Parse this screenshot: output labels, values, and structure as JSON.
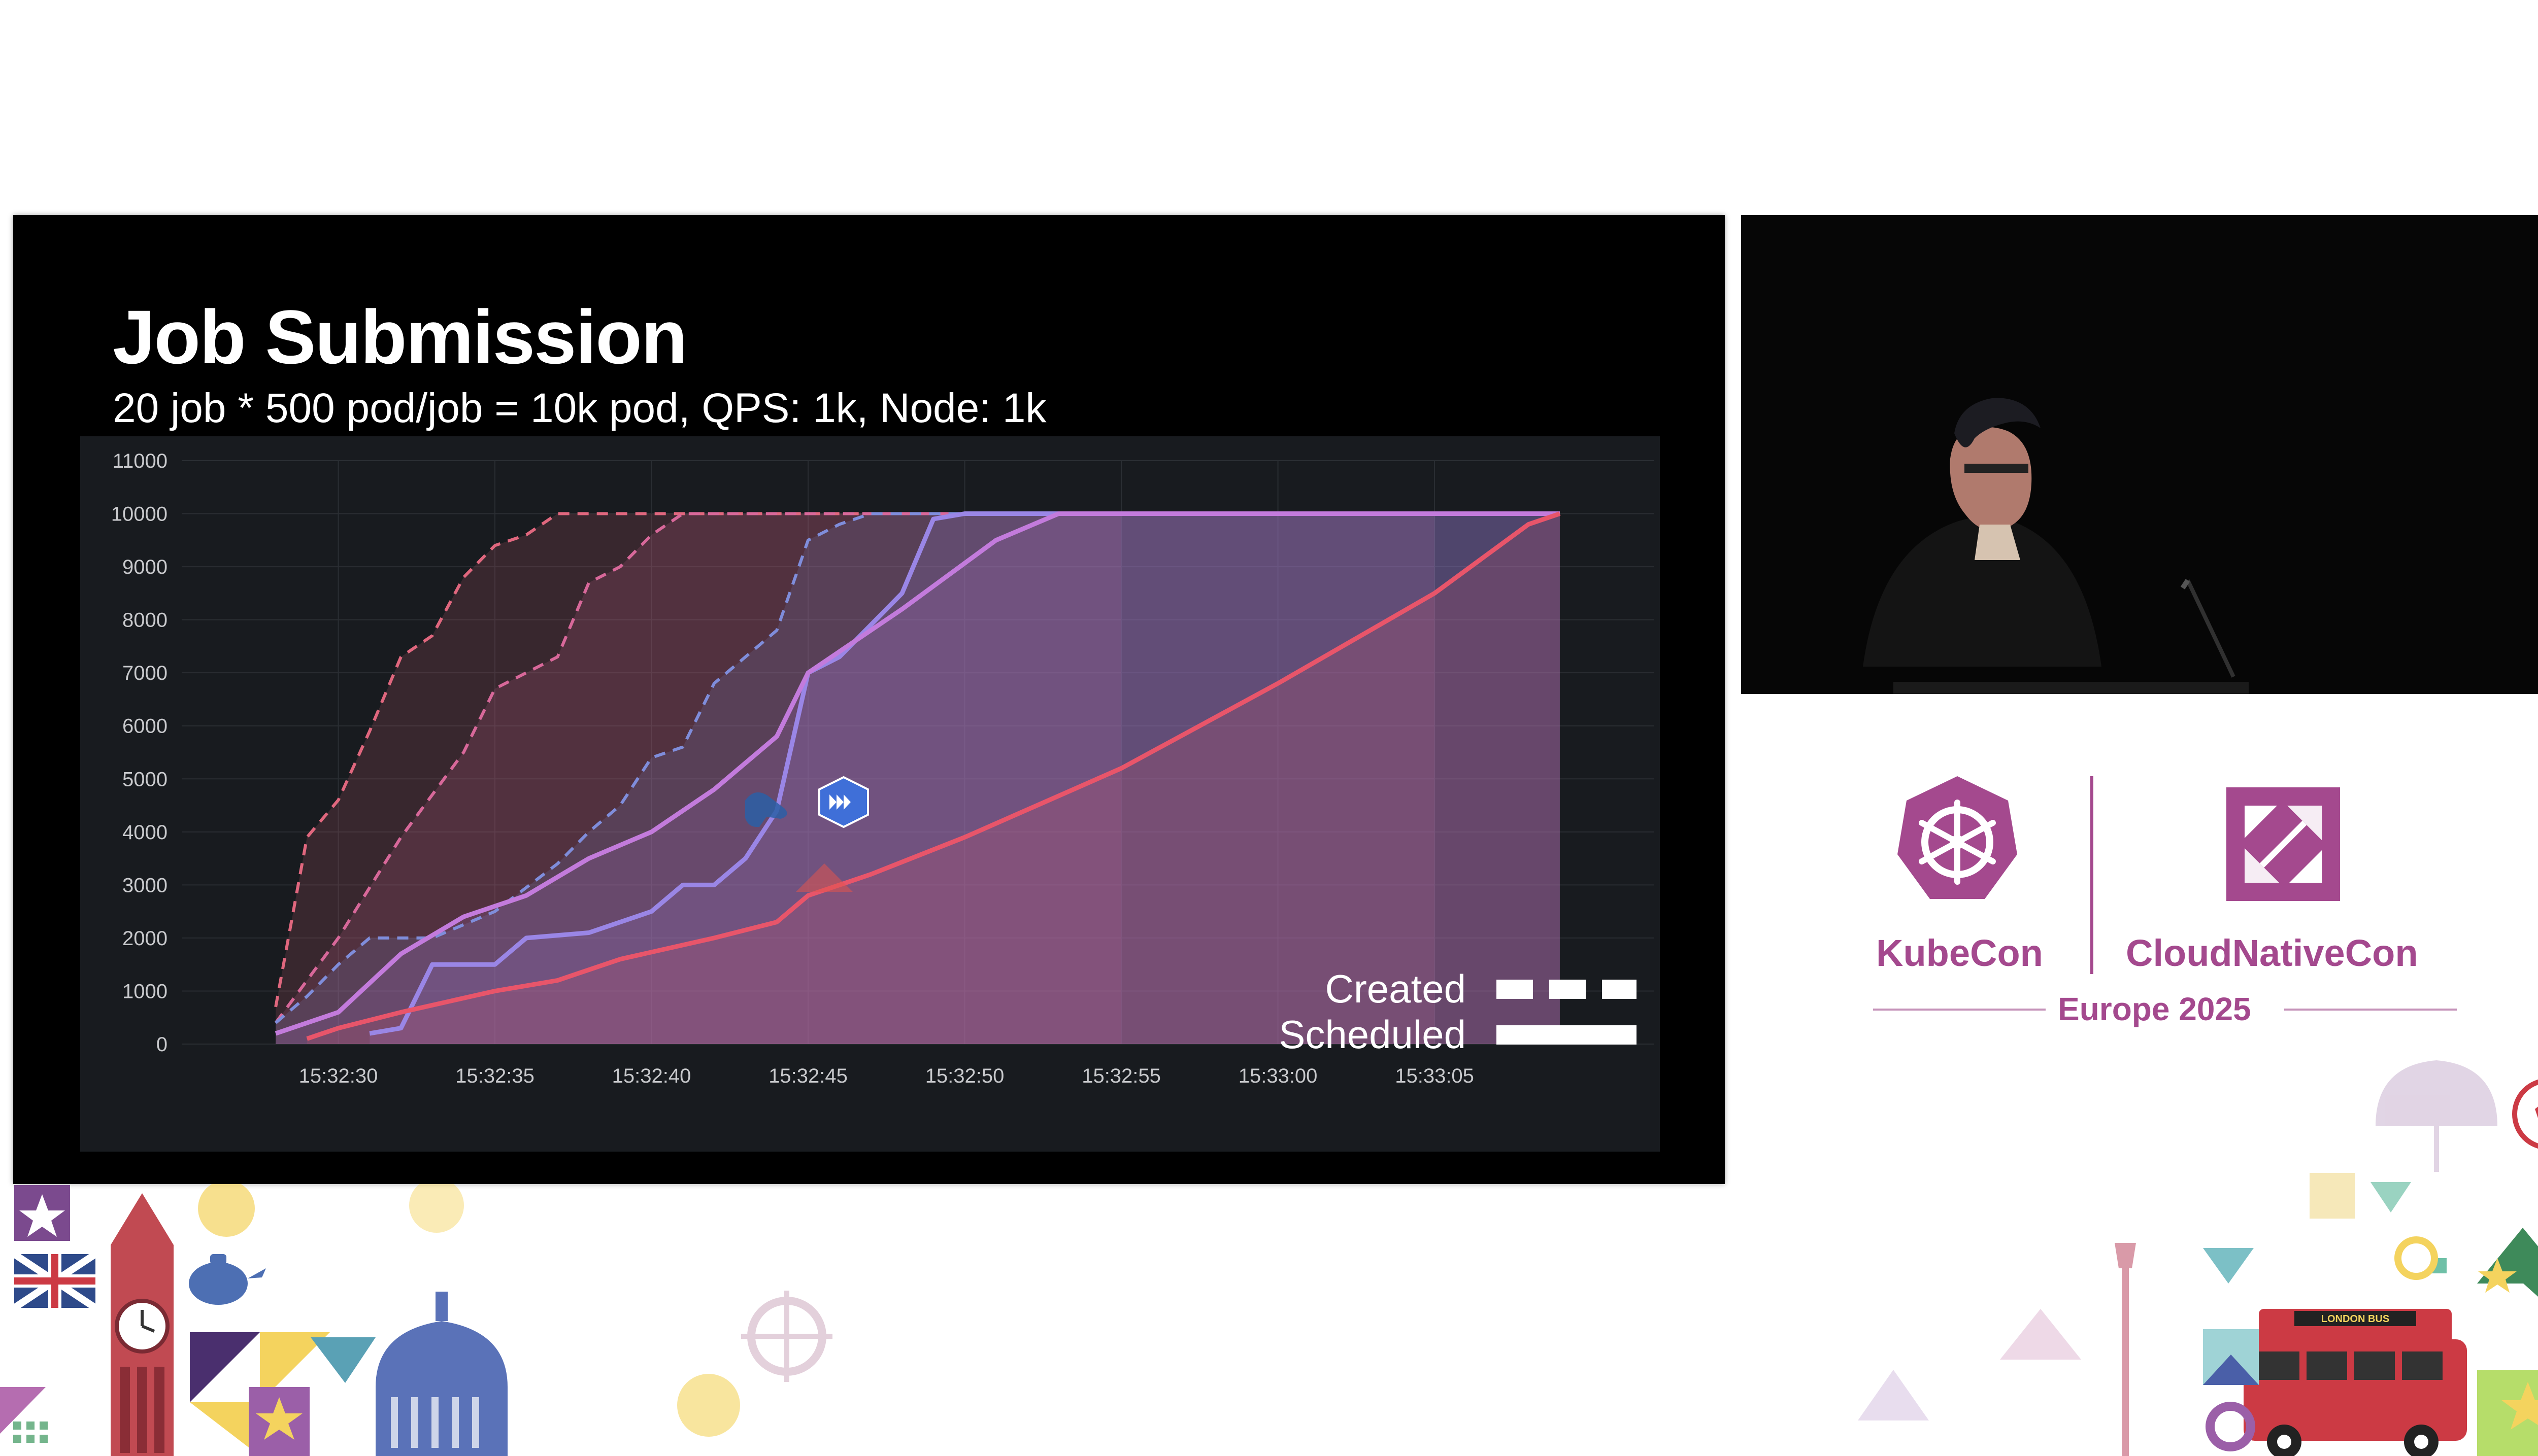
{
  "slide": {
    "title": "Job Submission",
    "subtitle": "20 job * 500 pod/job = 10k pod, QPS: 1k, Node: 1k"
  },
  "chart_data": {
    "type": "area",
    "x_unit": "time",
    "categories": [
      "15:32:30",
      "15:32:35",
      "15:32:40",
      "15:32:45",
      "15:32:50",
      "15:32:55",
      "15:33:00",
      "15:33:05"
    ],
    "y_ticks": [
      0,
      1000,
      2000,
      3000,
      4000,
      5000,
      6000,
      7000,
      8000,
      9000,
      10000,
      11000
    ],
    "ylim": [
      0,
      11000
    ],
    "grid": true,
    "legend_position": "bottom-right",
    "legend": [
      {
        "label": "Created",
        "style": "dashed"
      },
      {
        "label": "Scheduled",
        "style": "solid"
      }
    ],
    "series": [
      {
        "style": "dashed",
        "color": "#e0677e",
        "x": [
          "15:32:28",
          "15:32:29",
          "15:32:30",
          "15:32:31",
          "15:32:32",
          "15:32:33",
          "15:32:34",
          "15:32:35",
          "15:32:36",
          "15:32:37",
          "15:32:38",
          "15:32:55"
        ],
        "y": [
          700,
          3900,
          4600,
          5900,
          7300,
          7700,
          8800,
          9400,
          9600,
          10000,
          10000,
          10000
        ]
      },
      {
        "style": "dashed",
        "color": "#d8689a",
        "x": [
          "15:32:28",
          "15:32:30",
          "15:32:32",
          "15:32:34",
          "15:32:35",
          "15:32:36",
          "15:32:37",
          "15:32:38",
          "15:32:39",
          "15:32:40",
          "15:32:41",
          "15:33:05"
        ],
        "y": [
          400,
          2000,
          3900,
          5500,
          6700,
          7000,
          7300,
          8700,
          9000,
          9600,
          10000,
          10000
        ]
      },
      {
        "style": "dashed",
        "color": "#7f8ddb",
        "x": [
          "15:32:28",
          "15:32:29",
          "15:32:30",
          "15:32:31",
          "15:32:33",
          "15:32:35",
          "15:32:37",
          "15:32:38",
          "15:32:39",
          "15:32:40",
          "15:32:41",
          "15:32:42",
          "15:32:43",
          "15:32:44",
          "15:32:45",
          "15:32:46",
          "15:32:47",
          "15:33:09"
        ],
        "y": [
          400,
          900,
          1500,
          2000,
          2000,
          2500,
          3400,
          4000,
          4500,
          5400,
          5600,
          6800,
          7300,
          7800,
          9500,
          9800,
          10000,
          10000
        ]
      },
      {
        "style": "solid",
        "color": "#9a86e6",
        "x": [
          "15:32:31",
          "15:32:32",
          "15:32:33",
          "15:32:35",
          "15:32:36",
          "15:32:38",
          "15:32:40",
          "15:32:41",
          "15:32:42",
          "15:32:43",
          "15:32:44",
          "15:32:45",
          "15:32:46",
          "15:32:48",
          "15:32:49",
          "15:32:50",
          "15:33:09"
        ],
        "y": [
          200,
          300,
          1500,
          1500,
          2000,
          2100,
          2500,
          3000,
          3000,
          3500,
          4400,
          7000,
          7300,
          8500,
          9900,
          10000,
          10000
        ]
      },
      {
        "style": "solid",
        "color": "#c37bdc",
        "x": [
          "15:32:28",
          "15:32:30",
          "15:32:32",
          "15:32:34",
          "15:32:36",
          "15:32:38",
          "15:32:40",
          "15:32:42",
          "15:32:44",
          "15:32:45",
          "15:32:48",
          "15:32:51",
          "15:32:53",
          "15:33:09"
        ],
        "y": [
          200,
          600,
          1700,
          2400,
          2800,
          3500,
          4000,
          4800,
          5800,
          7000,
          8200,
          9500,
          10000,
          10000
        ]
      },
      {
        "style": "solid",
        "color": "#e8556a",
        "x": [
          "15:32:29",
          "15:32:30",
          "15:32:32",
          "15:32:35",
          "15:32:37",
          "15:32:39",
          "15:32:42",
          "15:32:44",
          "15:32:45",
          "15:32:47",
          "15:32:50",
          "15:32:55",
          "15:33:00",
          "15:33:05",
          "15:33:08",
          "15:33:09"
        ],
        "y": [
          100,
          300,
          600,
          1000,
          1200,
          1600,
          2000,
          2300,
          2800,
          3200,
          3900,
          5200,
          6800,
          8500,
          9800,
          10000
        ]
      }
    ]
  },
  "video": {},
  "branding": {
    "kubecon": "KubeCon",
    "cloudnativecon": "CloudNativeCon",
    "event": "Europe 2025",
    "bus_sign": "LONDON BUS",
    "colors": {
      "brand": "#a4498e",
      "brand_light": "#c592b9"
    }
  },
  "icons": [
    "kubernetes-wheel-icon",
    "cncf-logo-icon",
    "big-ben-icon",
    "union-jack-icon",
    "london-bus-icon",
    "star-icon",
    "sun-icon",
    "umbrella-icon",
    "football-icon",
    "teapot-icon",
    "dome-icon"
  ]
}
